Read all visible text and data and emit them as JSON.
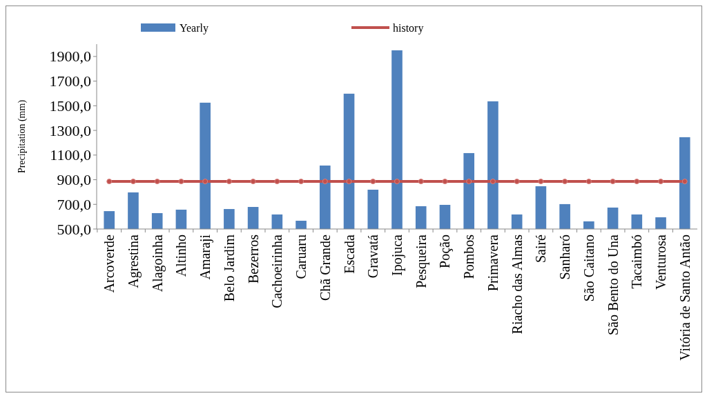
{
  "chart_data": {
    "type": "bar",
    "ylabel": "Precipitation (mm)",
    "categories": [
      "Arcoverde",
      "Agrestina",
      "Alagoinha",
      "Altinho",
      "Amaraji",
      "Belo Jardim",
      "Bezerros",
      "Cachoeirinha",
      "Caruaru",
      "Chã Grande",
      "Escada",
      "Gravatá",
      "Ipojuca",
      "Pesqueira",
      "Poção",
      "Pombos",
      "Primavera",
      "Riacho das Almas",
      "Sairé",
      "Sanharó",
      "São Caitano",
      "São Bento do Una",
      "Tacaimbó",
      "Venturosa",
      "Vitória de Santo Antão"
    ],
    "series": [
      {
        "name": "Yearly",
        "color": "#4f81bd",
        "values": [
          645,
          797,
          629,
          657,
          1525,
          662,
          679,
          618,
          567,
          1015,
          1598,
          819,
          1950,
          685,
          696,
          1116,
          1536,
          618,
          847,
          702,
          562,
          674,
          618,
          595,
          1245
        ]
      },
      {
        "name": "history",
        "type": "line",
        "color": "#c0504d",
        "marker": "circle",
        "values": [
          886,
          886,
          886,
          886,
          886,
          886,
          886,
          886,
          886,
          886,
          886,
          886,
          886,
          886,
          886,
          886,
          886,
          886,
          886,
          886,
          886,
          886,
          886,
          886,
          886
        ]
      }
    ],
    "ylim": [
      500,
      2000
    ],
    "yticks": [
      {
        "value": 500,
        "label": "500,0"
      },
      {
        "value": 700,
        "label": "700,0"
      },
      {
        "value": 900,
        "label": "900,0"
      },
      {
        "value": 1100,
        "label": "1100,0"
      },
      {
        "value": 1300,
        "label": "1300,0"
      },
      {
        "value": 1500,
        "label": "1500,0"
      },
      {
        "value": 1700,
        "label": "1700,0"
      },
      {
        "value": 1900,
        "label": "1900,0"
      }
    ],
    "legend": "top",
    "grid": false
  }
}
